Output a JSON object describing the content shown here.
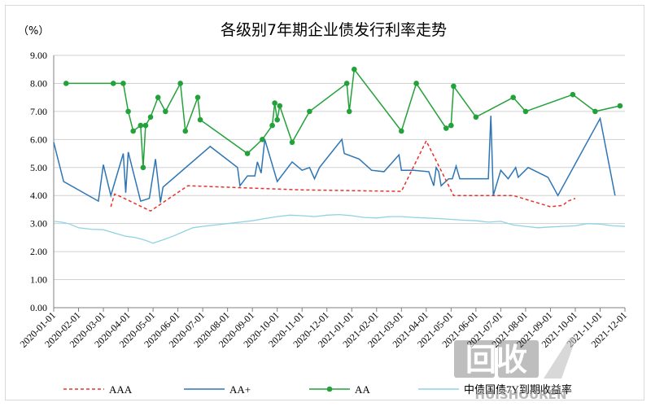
{
  "chart_data": {
    "type": "line",
    "title": "各级别7年期企业债发行利率走势",
    "unit_label": "（%）",
    "ylim": [
      0,
      9
    ],
    "yticks": [
      "0.00",
      "1.00",
      "2.00",
      "3.00",
      "4.00",
      "5.00",
      "6.00",
      "7.00",
      "8.00",
      "9.00"
    ],
    "categories": [
      "2020-01-01",
      "2020-02-01",
      "2020-03-01",
      "2020-04-01",
      "2020-05-01",
      "2020-06-01",
      "2020-07-01",
      "2020-08-01",
      "2020-09-01",
      "2020-10-01",
      "2020-11-01",
      "2020-12-01",
      "2021-01-01",
      "2021-02-01",
      "2021-03-01",
      "2021-04-01",
      "2021-05-01",
      "2021-06-01",
      "2021-07-01",
      "2021-08-01",
      "2021-09-01",
      "2021-10-01",
      "2021-11-01",
      "2021-12-01"
    ],
    "xlim_months": [
      0,
      23
    ],
    "series": [
      {
        "name": "AAA",
        "color": "#e8322d",
        "style": "dashed",
        "markers": false,
        "points": [
          [
            2.3,
            3.6
          ],
          [
            2.45,
            4.05
          ],
          [
            2.6,
            4.0
          ],
          [
            3.9,
            3.45
          ],
          [
            5.4,
            4.35
          ],
          [
            10.0,
            4.2
          ],
          [
            14.0,
            4.15
          ],
          [
            15.0,
            5.95
          ],
          [
            16.1,
            4.0
          ],
          [
            18.5,
            4.0
          ],
          [
            20.0,
            3.6
          ],
          [
            20.5,
            3.65
          ],
          [
            20.7,
            3.8
          ],
          [
            21.0,
            3.9
          ]
        ]
      },
      {
        "name": "AA+",
        "color": "#2e75b6",
        "style": "solid",
        "markers": false,
        "points": [
          [
            0.0,
            5.9
          ],
          [
            0.4,
            4.5
          ],
          [
            1.8,
            3.8
          ],
          [
            2.0,
            5.1
          ],
          [
            2.3,
            4.0
          ],
          [
            2.8,
            5.5
          ],
          [
            2.9,
            4.1
          ],
          [
            3.0,
            5.55
          ],
          [
            3.5,
            3.8
          ],
          [
            3.85,
            3.9
          ],
          [
            4.1,
            5.3
          ],
          [
            4.3,
            3.75
          ],
          [
            4.4,
            4.3
          ],
          [
            6.3,
            5.75
          ],
          [
            7.4,
            5.0
          ],
          [
            7.5,
            4.35
          ],
          [
            7.8,
            4.7
          ],
          [
            8.1,
            4.7
          ],
          [
            8.2,
            5.2
          ],
          [
            8.35,
            4.8
          ],
          [
            8.5,
            6.0
          ],
          [
            9.0,
            4.5
          ],
          [
            9.6,
            5.2
          ],
          [
            10.0,
            4.9
          ],
          [
            10.3,
            5.0
          ],
          [
            10.5,
            4.6
          ],
          [
            10.7,
            5.0
          ],
          [
            11.6,
            6.0
          ],
          [
            11.7,
            5.5
          ],
          [
            12.3,
            5.3
          ],
          [
            12.8,
            4.9
          ],
          [
            13.3,
            4.85
          ],
          [
            13.9,
            5.45
          ],
          [
            14.0,
            4.9
          ],
          [
            14.5,
            4.9
          ],
          [
            15.1,
            4.85
          ],
          [
            15.3,
            4.35
          ],
          [
            15.4,
            5.0
          ],
          [
            15.5,
            4.85
          ],
          [
            15.6,
            4.35
          ],
          [
            15.9,
            4.6
          ],
          [
            16.05,
            4.6
          ],
          [
            16.2,
            5.05
          ],
          [
            16.35,
            4.6
          ],
          [
            17.5,
            4.6
          ],
          [
            17.6,
            6.85
          ],
          [
            17.7,
            4.0
          ],
          [
            18.0,
            4.9
          ],
          [
            18.3,
            4.6
          ],
          [
            18.6,
            5.0
          ],
          [
            18.7,
            4.65
          ],
          [
            19.1,
            5.0
          ],
          [
            19.9,
            4.65
          ],
          [
            20.3,
            4.0
          ],
          [
            22.0,
            6.75
          ],
          [
            22.6,
            4.0
          ]
        ]
      },
      {
        "name": "AA",
        "color": "#23a13a",
        "style": "solid",
        "markers": true,
        "points": [
          [
            0.5,
            8.0
          ],
          [
            2.4,
            8.0
          ],
          [
            2.8,
            8.0
          ],
          [
            3.0,
            7.0
          ],
          [
            3.2,
            6.3
          ],
          [
            3.5,
            6.5
          ],
          [
            3.6,
            5.0
          ],
          [
            3.7,
            6.5
          ],
          [
            3.9,
            6.8
          ],
          [
            4.2,
            7.5
          ],
          [
            4.5,
            7.0
          ],
          [
            5.1,
            8.0
          ],
          [
            5.3,
            6.3
          ],
          [
            5.8,
            7.5
          ],
          [
            5.9,
            6.7
          ],
          [
            7.8,
            5.5
          ],
          [
            8.4,
            6.0
          ],
          [
            8.8,
            6.5
          ],
          [
            8.9,
            7.3
          ],
          [
            9.0,
            6.7
          ],
          [
            9.1,
            7.2
          ],
          [
            9.6,
            5.9
          ],
          [
            10.3,
            7.0
          ],
          [
            11.8,
            8.0
          ],
          [
            11.9,
            7.0
          ],
          [
            12.1,
            8.5
          ],
          [
            14.0,
            6.3
          ],
          [
            14.6,
            8.0
          ],
          [
            15.8,
            6.4
          ],
          [
            16.0,
            6.5
          ],
          [
            16.1,
            7.9
          ],
          [
            17.0,
            6.8
          ],
          [
            18.5,
            7.5
          ],
          [
            19.0,
            7.0
          ],
          [
            20.9,
            7.6
          ],
          [
            21.8,
            7.0
          ],
          [
            22.8,
            7.2
          ]
        ]
      },
      {
        "name": "中债国债7Y到期收益率",
        "color": "#8fd3e3",
        "style": "solid",
        "markers": false,
        "points": [
          [
            0.0,
            3.08
          ],
          [
            0.3,
            3.05
          ],
          [
            0.6,
            3.0
          ],
          [
            1.0,
            2.85
          ],
          [
            1.5,
            2.8
          ],
          [
            2.0,
            2.78
          ],
          [
            2.5,
            2.65
          ],
          [
            2.9,
            2.55
          ],
          [
            3.3,
            2.5
          ],
          [
            3.7,
            2.4
          ],
          [
            4.0,
            2.3
          ],
          [
            4.4,
            2.42
          ],
          [
            4.8,
            2.55
          ],
          [
            5.2,
            2.7
          ],
          [
            5.6,
            2.85
          ],
          [
            6.0,
            2.9
          ],
          [
            6.5,
            2.95
          ],
          [
            7.0,
            3.0
          ],
          [
            7.5,
            3.05
          ],
          [
            8.0,
            3.1
          ],
          [
            8.5,
            3.18
          ],
          [
            9.0,
            3.25
          ],
          [
            9.5,
            3.3
          ],
          [
            10.0,
            3.28
          ],
          [
            10.5,
            3.25
          ],
          [
            11.0,
            3.3
          ],
          [
            11.5,
            3.32
          ],
          [
            12.0,
            3.28
          ],
          [
            12.5,
            3.22
          ],
          [
            13.0,
            3.2
          ],
          [
            13.5,
            3.25
          ],
          [
            14.0,
            3.25
          ],
          [
            14.5,
            3.22
          ],
          [
            15.0,
            3.2
          ],
          [
            15.5,
            3.18
          ],
          [
            16.0,
            3.15
          ],
          [
            16.5,
            3.12
          ],
          [
            17.0,
            3.1
          ],
          [
            17.5,
            3.05
          ],
          [
            18.0,
            3.08
          ],
          [
            18.5,
            2.95
          ],
          [
            19.0,
            2.9
          ],
          [
            19.5,
            2.85
          ],
          [
            20.0,
            2.88
          ],
          [
            20.5,
            2.9
          ],
          [
            21.0,
            2.92
          ],
          [
            21.5,
            3.0
          ],
          [
            22.0,
            2.98
          ],
          [
            22.5,
            2.92
          ],
          [
            23.0,
            2.9
          ]
        ]
      }
    ],
    "legend": {
      "position": "bottom",
      "items": [
        "AAA",
        "AA+",
        "AA",
        "中债国债7Y到期收益率"
      ]
    }
  },
  "watermark": {
    "text": "回收",
    "subtext": "HUISHOUREN"
  }
}
